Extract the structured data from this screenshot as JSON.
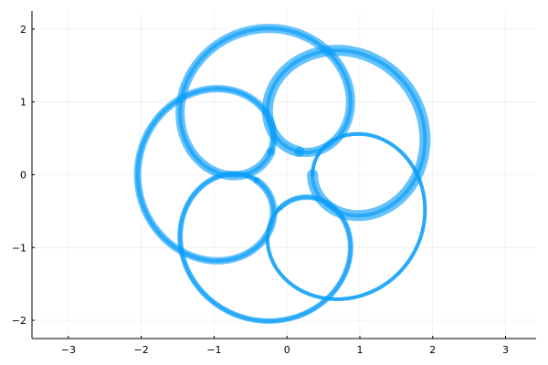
{
  "chart_data": {
    "type": "line",
    "title": "",
    "xlabel": "",
    "ylabel": "",
    "xlim": [
      -3.5,
      3.42
    ],
    "ylim": [
      -2.25,
      2.25
    ],
    "xticks": [
      -3,
      -2,
      -1,
      0,
      1,
      2,
      3
    ],
    "yticks": [
      -2,
      -1,
      0,
      1,
      2
    ],
    "xtick_labels": [
      "−3",
      "−2",
      "−1",
      "0",
      "1",
      "2",
      "3"
    ],
    "ytick_labels": [
      "−2",
      "−1",
      "0",
      "1",
      "2"
    ],
    "grid": true,
    "legend": "none",
    "series_color": "#009af9",
    "series": [
      {
        "kind": "epicycloid",
        "R": 1.0,
        "r": 0.2,
        "d": 0.85,
        "stroke_sizes": [
          12,
          10,
          8,
          6,
          4
        ],
        "alpha": 0.6,
        "t_range": [
          0,
          6.2832
        ],
        "samples": 400
      }
    ]
  }
}
